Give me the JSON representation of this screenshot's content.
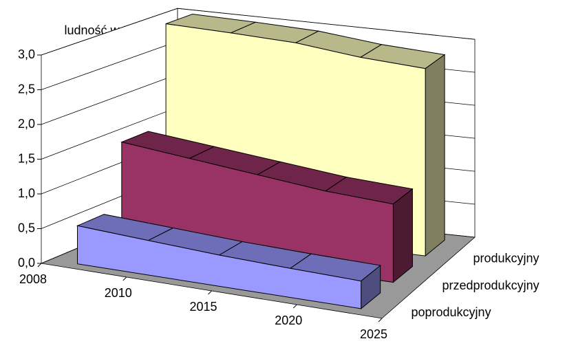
{
  "chart_data": {
    "type": "area3d",
    "y_axis_label": "ludność w tys.",
    "categories": [
      "2008",
      "2010",
      "2015",
      "2020",
      "2025"
    ],
    "series": [
      {
        "name": "produkcyjny",
        "color": "#ffffc0",
        "values": [
          3.0,
          2.98,
          2.95,
          2.85,
          2.8
        ]
      },
      {
        "name": "przedprodukcyjny",
        "color": "#993366",
        "values": [
          1.5,
          1.4,
          1.3,
          1.2,
          1.15
        ]
      },
      {
        "name": "poprodukcyjny",
        "color": "#9999ff",
        "values": [
          0.55,
          0.5,
          0.45,
          0.42,
          0.4
        ]
      }
    ],
    "ylim": [
      0,
      3.0
    ],
    "yticks": [
      {
        "value": 0,
        "label": "0,0"
      },
      {
        "value": 0.5,
        "label": "0,5"
      },
      {
        "value": 1.0,
        "label": "1,0"
      },
      {
        "value": 1.5,
        "label": "1,5"
      },
      {
        "value": 2.0,
        "label": "2,0"
      },
      {
        "value": 2.5,
        "label": "2,5"
      },
      {
        "value": 3.0,
        "label": "3,0"
      }
    ],
    "grid": true
  }
}
